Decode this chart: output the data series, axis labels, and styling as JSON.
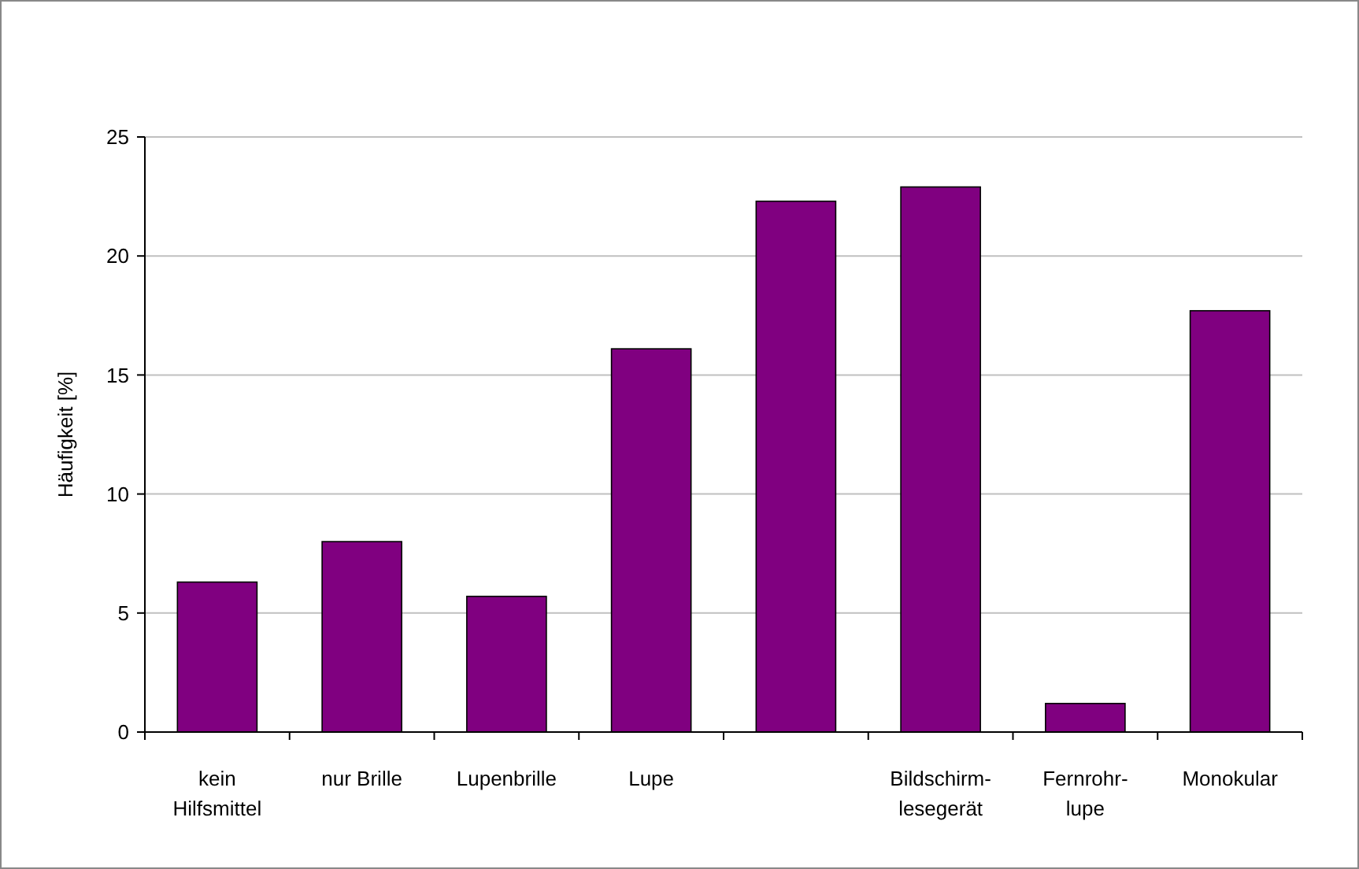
{
  "chart_data": {
    "type": "bar",
    "ylabel": "Häufigkeit [%]",
    "categories": [
      "kein\nHilfsmittel",
      "nur Brille",
      "Lupenbrille",
      "Lupe",
      null,
      "Bildschirm-\nlesegerät",
      "Fernrohr-\nlupe",
      "Monokular"
    ],
    "values": [
      6.3,
      8.0,
      5.7,
      16.1,
      22.3,
      22.9,
      1.2,
      17.7
    ],
    "color": "#800080",
    "ylim": [
      0,
      25
    ],
    "yticks": [
      0,
      5,
      10,
      15,
      20,
      25
    ],
    "grid": "y"
  }
}
